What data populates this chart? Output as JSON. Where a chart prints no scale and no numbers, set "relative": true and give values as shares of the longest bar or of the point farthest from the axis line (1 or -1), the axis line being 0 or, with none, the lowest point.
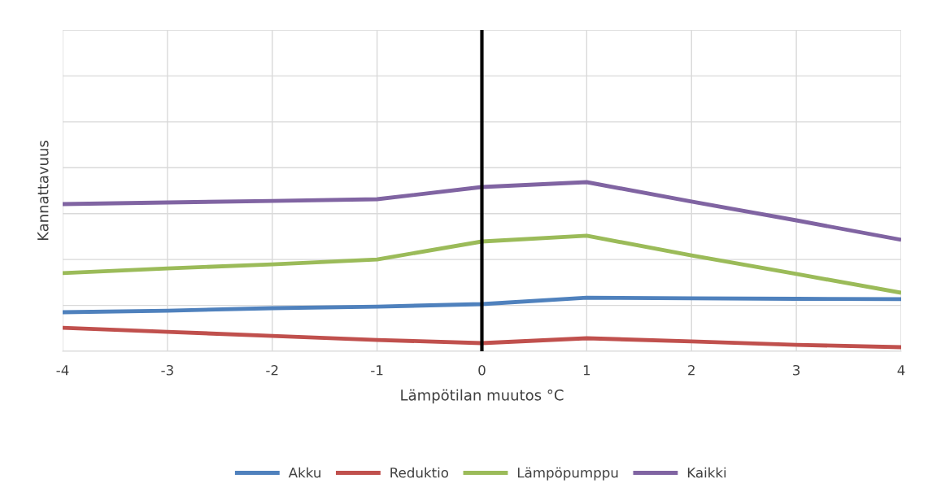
{
  "chart_data": {
    "type": "line",
    "xlabel": "Lämpötilan muutos °C",
    "ylabel": "Kannattavuus",
    "relative": true,
    "x": [
      -4,
      -3,
      -2,
      -1,
      0,
      1,
      2,
      3,
      4
    ],
    "xlim": [
      -4,
      4
    ],
    "xticks": [
      -4,
      -3,
      -2,
      -1,
      0,
      1,
      2,
      3,
      4
    ],
    "series": [
      {
        "name": "Akku",
        "color": "#4f81bd",
        "values": [
          0.231,
          0.24,
          0.255,
          0.264,
          0.279,
          0.317,
          0.313,
          0.31,
          0.308
        ]
      },
      {
        "name": "Reduktio",
        "color": "#c0504d",
        "values": [
          0.139,
          0.115,
          0.091,
          0.067,
          0.048,
          0.077,
          0.058,
          0.038,
          0.024
        ]
      },
      {
        "name": "Lämpöpumppu",
        "color": "#9bbb59",
        "values": [
          0.462,
          0.49,
          0.514,
          0.543,
          0.649,
          0.683,
          0.567,
          0.457,
          0.346
        ]
      },
      {
        "name": "Kaikki",
        "color": "#8064a2",
        "values": [
          0.87,
          0.88,
          0.889,
          0.899,
          0.971,
          1,
          0.885,
          0.774,
          0.659
        ]
      }
    ],
    "ref_lines": [
      {
        "axis": "x",
        "value": 0,
        "color": "#000000"
      }
    ],
    "grid": true,
    "legend": "bottom",
    "marker": "none",
    "line_style": "solid",
    "tick_labels": "x"
  }
}
